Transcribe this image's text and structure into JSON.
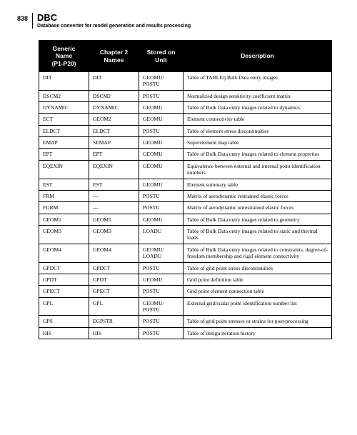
{
  "page_number": "838",
  "title": "DBC",
  "subtitle": "Database converter for model generation and results processing",
  "columns": [
    "Generic\nName\n(P1-P20)",
    "Chapter 2\nNames",
    "Stored on\nUnit",
    "Description"
  ],
  "rows": [
    [
      "DIT",
      "DIT",
      "GEOMU/\nPOSTU",
      "Table of TABLEij Bulk Data entry images"
    ],
    [
      "DSCM2",
      "DSCM2",
      "POSTU",
      "Normalized design sensitivity coefficient matrix"
    ],
    [
      "DYNAMIC",
      "DYNAMIC",
      "GEOMU",
      "Table of Bulk Data entry images related to dynamics"
    ],
    [
      "ECT",
      "GEOM2",
      "GEOMU",
      "Element connectivity table"
    ],
    [
      "ELDCT",
      "ELDCT",
      "POSTU",
      "Table of element stress discontinuities"
    ],
    [
      "EMAP",
      "SEMAP",
      "GEOMU",
      "Superelement map table"
    ],
    [
      "EPT",
      "EPT",
      "GEOMU",
      "Table of Bulk Data entry images related to element properties"
    ],
    [
      "EQEXIN",
      "EQEXIN",
      "GEOMU",
      "Equivalence between external and internal point identification numbers"
    ],
    [
      "EST",
      "EST",
      "GEOMU",
      " Element summary table"
    ],
    [
      "FRM",
      "---",
      "POSTU",
      "Matrix of aerodynamic restrained elastic forces"
    ],
    [
      "FURM",
      "---",
      "POSTU",
      "Matrix of aerodynamic unrestrained elastic forces"
    ],
    [
      "GEOM1",
      "GEOM1",
      "GEOMU",
      "Table of Bulk Data entry images related to geometry"
    ],
    [
      "GEOM3",
      "GEOM3",
      "LOADU",
      "Table of Bulk Data entry images related to static and thermal loads"
    ],
    [
      "GEOM4",
      "GEOM4",
      "GEOMU/\nLOADU",
      "Table of Bulk Data entry images related to constraints, degree-of-freedom membership and rigid element connectivity"
    ],
    [
      "GPDCT",
      "GPDCT",
      "POSTU",
      "Table of grid point stress discontinuities"
    ],
    [
      "GPDT",
      " GPDT",
      "GEOMU",
      "Grid point definition table"
    ],
    [
      "GPECT",
      "GPECT",
      "POSTU",
      "Grid point element connection table"
    ],
    [
      "GPL",
      "GPL",
      "GEOMU/\nPOSTU",
      "External grid/scalar point identification number list"
    ],
    [
      "GPS",
      "EGPSTR",
      "POSTU",
      "Table of grid point stresses or strains for post-processing"
    ],
    [
      "HIS",
      "HIS",
      "POSTU",
      "Table of design iteration history"
    ]
  ]
}
